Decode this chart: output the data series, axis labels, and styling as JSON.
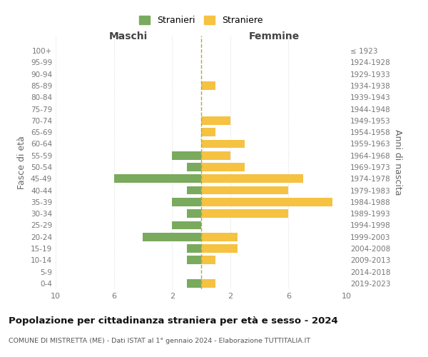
{
  "age_groups": [
    "0-4",
    "5-9",
    "10-14",
    "15-19",
    "20-24",
    "25-29",
    "30-34",
    "35-39",
    "40-44",
    "45-49",
    "50-54",
    "55-59",
    "60-64",
    "65-69",
    "70-74",
    "75-79",
    "80-84",
    "85-89",
    "90-94",
    "95-99",
    "100+"
  ],
  "birth_years": [
    "2019-2023",
    "2014-2018",
    "2009-2013",
    "2004-2008",
    "1999-2003",
    "1994-1998",
    "1989-1993",
    "1984-1988",
    "1979-1983",
    "1974-1978",
    "1969-1973",
    "1964-1968",
    "1959-1963",
    "1954-1958",
    "1949-1953",
    "1944-1948",
    "1939-1943",
    "1934-1938",
    "1929-1933",
    "1924-1928",
    "≤ 1923"
  ],
  "males": [
    1,
    0,
    1,
    1,
    4,
    2,
    1,
    2,
    1,
    6,
    1,
    2,
    0,
    0,
    0,
    0,
    0,
    0,
    0,
    0,
    0
  ],
  "females": [
    1,
    0,
    1,
    2.5,
    2.5,
    0,
    6,
    9,
    6,
    7,
    3,
    2,
    3,
    1,
    2,
    0,
    0,
    1,
    0,
    0,
    0
  ],
  "male_color": "#7aaa5e",
  "female_color": "#f5c242",
  "dashed_line_color": "#b5a642",
  "title": "Popolazione per cittadinanza straniera per età e sesso - 2024",
  "subtitle": "COMUNE DI MISTRETTA (ME) - Dati ISTAT al 1° gennaio 2024 - Elaborazione TUTTITALIA.IT",
  "xlabel_left": "Maschi",
  "xlabel_right": "Femmine",
  "ylabel_left": "Fasce di età",
  "ylabel_right": "Anni di nascita",
  "legend_stranieri": "Stranieri",
  "legend_straniere": "Straniere",
  "xlim": 10,
  "background_color": "#ffffff",
  "grid_color": "#dddddd"
}
